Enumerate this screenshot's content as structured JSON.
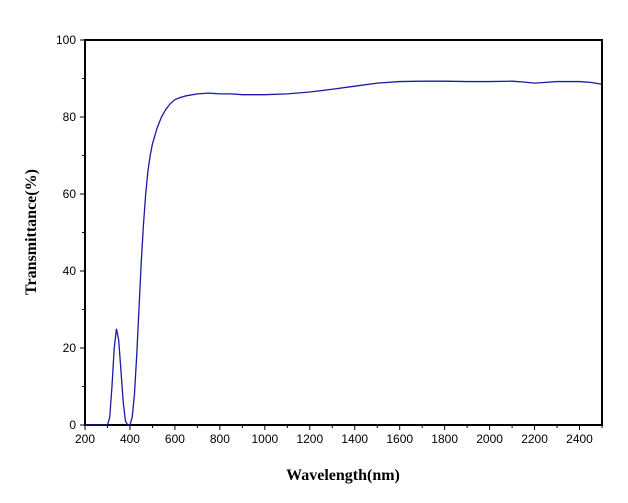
{
  "chart_data": {
    "type": "line",
    "title": "",
    "xlabel": "Wavelength(nm)",
    "ylabel": "Transmittance(%)",
    "xlim": [
      200,
      2500
    ],
    "ylim": [
      0,
      100
    ],
    "x_ticks": [
      200,
      400,
      600,
      800,
      1000,
      1200,
      1400,
      1600,
      1800,
      2000,
      2200,
      2400
    ],
    "y_ticks": [
      0,
      20,
      40,
      60,
      80,
      100
    ],
    "x_tick_labels": [
      "200",
      "400",
      "600",
      "800",
      "1000",
      "1200",
      "1400",
      "1600",
      "1800",
      "2000",
      "2200",
      "2400"
    ],
    "y_tick_labels": [
      "0",
      "20",
      "40",
      "60",
      "80",
      "100"
    ],
    "grid": false,
    "legend": "none",
    "line_color": "#1a1aa6",
    "series": [
      {
        "x": [
          200,
          300,
          310,
          320,
          330,
          340,
          350,
          360,
          370,
          380,
          390,
          400,
          410,
          420,
          430,
          440,
          450,
          460,
          470,
          480,
          490,
          500,
          520,
          540,
          560,
          580,
          600,
          620,
          650,
          700,
          750,
          800,
          850,
          900,
          1000,
          1100,
          1200,
          1300,
          1400,
          1500,
          1600,
          1700,
          1800,
          1900,
          2000,
          2100,
          2150,
          2200,
          2250,
          2300,
          2350,
          2400,
          2450,
          2500
        ],
        "y": [
          0,
          0,
          2,
          10,
          20,
          25,
          22,
          14,
          6,
          1,
          0,
          0,
          2,
          8,
          18,
          30,
          42,
          52,
          60,
          66,
          70,
          73,
          77,
          80,
          82,
          83.5,
          84.5,
          85,
          85.5,
          86,
          86.2,
          86,
          86,
          85.8,
          85.8,
          86,
          86.5,
          87.2,
          88,
          88.8,
          89.2,
          89.3,
          89.3,
          89.2,
          89.2,
          89.3,
          89.1,
          88.8,
          89,
          89.2,
          89.2,
          89.2,
          89,
          88.5
        ]
      }
    ]
  }
}
